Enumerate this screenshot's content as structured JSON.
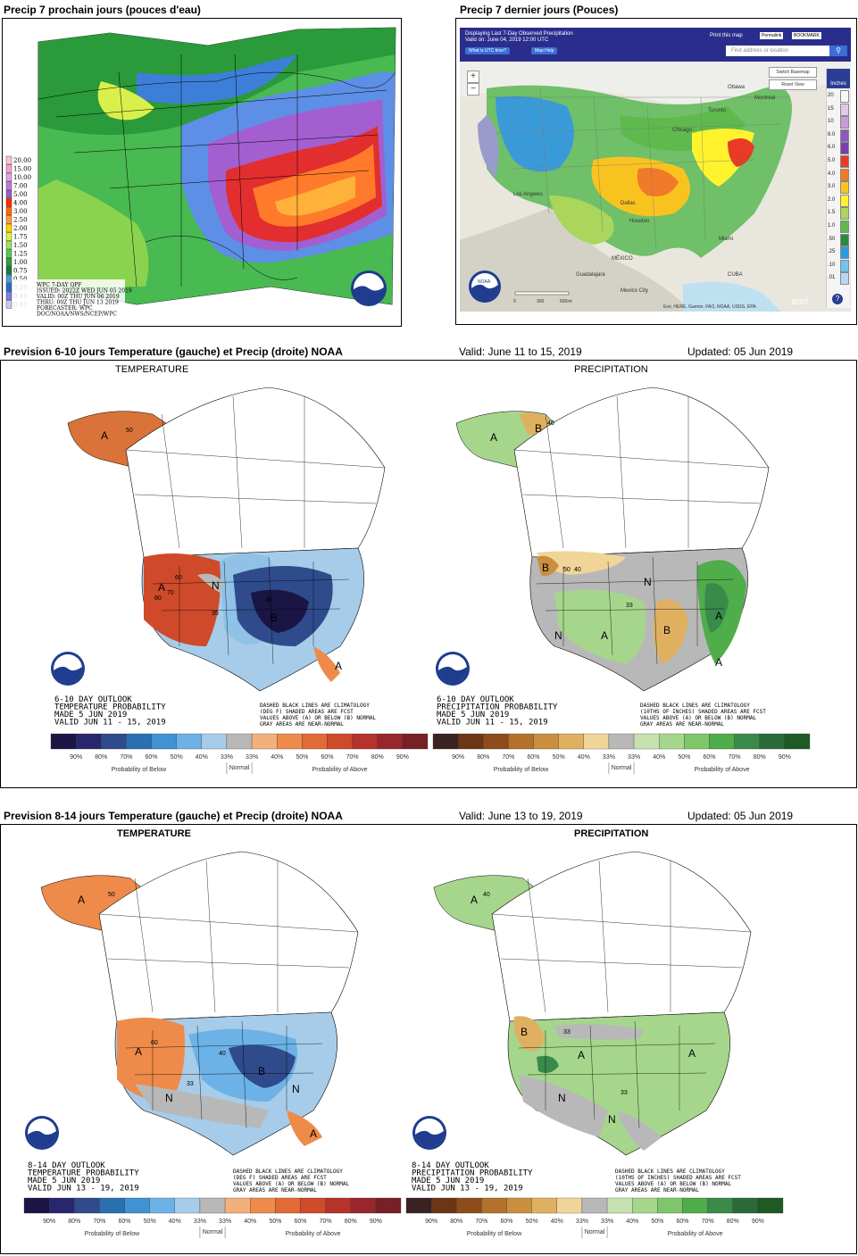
{
  "top_left": {
    "header": "Precip 7 prochain jours (pouces d'eau)",
    "legend": [
      "20.00",
      "15.00",
      "10.00",
      "7.00",
      "5.00",
      "4.00",
      "3.00",
      "2.50",
      "2.00",
      "1.75",
      "1.50",
      "1.25",
      "1.00",
      "0.75",
      "0.50",
      "0.25",
      "0.10",
      "0.01"
    ],
    "legend_colors": [
      "#f7c6dc",
      "#f3a7c7",
      "#e3a3e4",
      "#c17ad6",
      "#9a5fc0",
      "#ff2a00",
      "#ff6a00",
      "#ff9a3a",
      "#ffd200",
      "#d9f04a",
      "#a1e25b",
      "#56c85c",
      "#2f9f3a",
      "#1f7a33",
      "#4a9fe0",
      "#2b6bd1",
      "#7f7fe6",
      "#c9c9f0"
    ],
    "info_lines": [
      "WPC 7-DAY QPF",
      "ISSUED: 2022Z WED JUN 05 2019",
      "VALID: 00Z THU JUN 06 2019",
      "THRU: 00Z THU JUN 13 2019",
      "FORECASTER: WPC",
      "DOC/NOAA/NWS/NCEP/WPC"
    ]
  },
  "top_right": {
    "header": "Precip 7 dernier jours (Pouces)",
    "title_line1": "Displaying Last 7-Day Observed Precipitation",
    "title_line2": "Valid on: June 04, 2019 12:00 UTC",
    "btn_utc": "What is UTC time?",
    "btn_help": "Map Help",
    "print_label": "Print this map",
    "permalink_label": "Permalink",
    "bookmark_label": "BOOKMARK",
    "search_placeholder": "Find address or location",
    "switch_basemap": "Switch Basemap",
    "reset_view": "Reset View",
    "inches_label": "Inches",
    "legend": [
      "20",
      "15",
      "10",
      "8.0",
      "6.0",
      "5.0",
      "4.0",
      "3.0",
      "2.0",
      "1.5",
      "1.0",
      ".50",
      ".25",
      ".10",
      ".01"
    ],
    "legend_colors": [
      "#f8f8f8",
      "#e3c8e8",
      "#c89cd6",
      "#8f58b9",
      "#7a3fb0",
      "#e83a26",
      "#f07a2a",
      "#f9c31f",
      "#fff32d",
      "#a9d65b",
      "#5fb94d",
      "#2b8a3a",
      "#2a9de0",
      "#6fc3ef",
      "#b9d7ef"
    ],
    "place_labels": [
      "MÉXICO",
      "Guadalajara",
      "Mexico City",
      "CUBA",
      "Ottawa",
      "Montreal",
      "Toronto",
      "Chicago",
      "Los Angeles",
      "Dallas",
      "Houston",
      "Miami"
    ],
    "attribution": "Esri, HERE, Garmin, FAO, NOAA, USGS, EPA",
    "scale": [
      "0",
      "300",
      "600mi"
    ],
    "esri": "esri",
    "noaa": "NOAA"
  },
  "mid": {
    "header": "Prevision 6-10 jours Temperature (gauche) et Precip (droite) NOAA",
    "valid": "Valid: June 11 to 15, 2019",
    "updated": "Updated: 05 Jun 2019",
    "temp_title": "TEMPERATURE",
    "precip_title": "PRECIPITATION",
    "temp_text": [
      "6-10 DAY OUTLOOK",
      "TEMPERATURE PROBABILITY",
      "MADE  5 JUN 2019",
      "VALID  JUN 11 - 15, 2019"
    ],
    "precip_text": [
      "6-10 DAY OUTLOOK",
      "PRECIPITATION PROBABILITY",
      "MADE  5 JUN 2019",
      "VALID  JUN 11 - 15, 2019"
    ],
    "temp_notes": [
      "DASHED BLACK LINES ARE CLIMATOLOGY",
      "(DEG F) SHADED AREAS ARE FCST",
      "VALUES ABOVE (A) OR BELOW (B) NORMAL",
      "GRAY AREAS ARE NEAR-NORMAL"
    ],
    "precip_notes": [
      "DASHED BLACK LINES ARE CLIMATOLOGY",
      "(10THS OF INCHES) SHADED AREAS ARE FCST",
      "VALUES ABOVE (A) OR BELOW (B) NORMAL",
      "GRAY AREAS ARE NEAR-NORMAL"
    ]
  },
  "bot": {
    "header": "Prevision 8-14 jours Temperature (gauche) et Precip (droite) NOAA",
    "valid": "Valid: June 13 to 19, 2019",
    "updated": "Updated: 05 Jun 2019",
    "temp_title": "TEMPERATURE",
    "precip_title": "PRECIPITATION",
    "temp_text": [
      "8-14 DAY OUTLOOK",
      "TEMPERATURE PROBABILITY",
      "MADE  5 JUN 2019",
      "VALID  JUN 13 - 19, 2019"
    ],
    "precip_text": [
      "8-14 DAY OUTLOOK",
      "PRECIPITATION PROBABILITY",
      "MADE  5 JUN 2019",
      "VALID  JUN 13 - 19, 2019"
    ],
    "temp_notes": [
      "DASHED BLACK LINES ARE CLIMATOLOGY",
      "(DEG F) SHADED AREAS ARE FCST",
      "VALUES ABOVE (A) OR BELOW (B) NORMAL",
      "GRAY AREAS ARE NEAR-NORMAL"
    ],
    "precip_notes": [
      "DASHED BLACK LINES ARE CLIMATOLOGY",
      "(10THS OF INCHES) SHADED AREAS ARE FCST",
      "VALUES ABOVE (A) OR BELOW (B) NORMAL",
      "GRAY AREAS ARE NEAR-NORMAL"
    ]
  },
  "prob_legend": {
    "pct": [
      "90%",
      "80%",
      "70%",
      "60%",
      "50%",
      "40%",
      "33%",
      "33%",
      "40%",
      "50%",
      "60%",
      "70%",
      "80%",
      "90%"
    ],
    "below_label": "Probability of Below",
    "above_label": "Probability of Above",
    "normal_label": "Normal",
    "temp_colors": [
      "#1a1544",
      "#28276e",
      "#2f4b8c",
      "#2a6fb2",
      "#3f92d4",
      "#6cb2e6",
      "#a7cce9",
      "#b8b8b8",
      "#f3b07a",
      "#ee8b4a",
      "#e26a34",
      "#cf4a2a",
      "#b5332a",
      "#98262a",
      "#772025"
    ],
    "precip_colors": [
      "#3b2222",
      "#6b3516",
      "#8e4c1b",
      "#b3712b",
      "#c98f3f",
      "#e0b061",
      "#f0d498",
      "#b8b8b8",
      "#c7e2b0",
      "#a6d68c",
      "#7fc66b",
      "#4fad4a",
      "#3a8a4a",
      "#2a6a3a",
      "#1d5a24"
    ]
  },
  "map_labels": {
    "mid_temp": [
      "A",
      "A",
      "B",
      "A",
      "N",
      "50",
      "60",
      "70",
      "80",
      "30",
      "35"
    ],
    "mid_precip": [
      "A",
      "B",
      "B",
      "N",
      "N",
      "A",
      "A",
      "B",
      "A",
      "40",
      "50",
      "40",
      "33"
    ],
    "bot_temp": [
      "A",
      "A",
      "B",
      "A",
      "N",
      "N",
      "50",
      "60",
      "40",
      "33"
    ],
    "bot_precip": [
      "A",
      "B",
      "N",
      "N",
      "A",
      "A",
      "33",
      "40",
      "33"
    ]
  }
}
